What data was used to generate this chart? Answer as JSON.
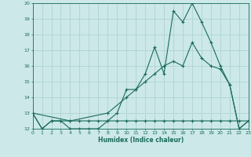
{
  "title": "",
  "xlabel": "Humidex (Indice chaleur)",
  "background_color": "#cce8e8",
  "grid_color": "#aacfcf",
  "line_color": "#1a6b5a",
  "xmin": 0,
  "xmax": 23,
  "ymin": 12,
  "ymax": 20,
  "yticks": [
    12,
    13,
    14,
    15,
    16,
    17,
    18,
    19,
    20
  ],
  "xticks": [
    0,
    1,
    2,
    3,
    4,
    5,
    6,
    7,
    8,
    9,
    10,
    11,
    12,
    13,
    14,
    15,
    16,
    17,
    18,
    19,
    20,
    21,
    22,
    23
  ],
  "line1_x": [
    0,
    1,
    2,
    3,
    4,
    5,
    6,
    7,
    8,
    9,
    10,
    11,
    12,
    13,
    14,
    15,
    16,
    17,
    18,
    19,
    20,
    21,
    22,
    23
  ],
  "line1_y": [
    13.0,
    12.0,
    12.5,
    12.5,
    12.0,
    12.0,
    12.0,
    12.0,
    12.5,
    13.0,
    14.5,
    14.5,
    15.5,
    17.2,
    15.5,
    19.5,
    18.8,
    20.0,
    18.8,
    17.5,
    16.0,
    14.8,
    12.0,
    12.5
  ],
  "line2_x": [
    0,
    4,
    8,
    10,
    11,
    12,
    13,
    14,
    15,
    16,
    17,
    18,
    19,
    20,
    21,
    22,
    23
  ],
  "line2_y": [
    13.0,
    12.5,
    13.0,
    14.0,
    14.5,
    15.0,
    15.5,
    16.0,
    16.3,
    16.0,
    17.5,
    16.5,
    16.0,
    15.8,
    14.8,
    12.0,
    12.5
  ],
  "line3_x": [
    0,
    1,
    2,
    3,
    4,
    5,
    6,
    7,
    8,
    9,
    10,
    11,
    12,
    13,
    14,
    15,
    16,
    17,
    18,
    19,
    20,
    21,
    22,
    23
  ],
  "line3_y": [
    13.0,
    12.0,
    12.5,
    12.5,
    12.5,
    12.5,
    12.5,
    12.5,
    12.5,
    12.5,
    12.5,
    12.5,
    12.5,
    12.5,
    12.5,
    12.5,
    12.5,
    12.5,
    12.5,
    12.5,
    12.5,
    12.5,
    12.5,
    12.5
  ]
}
